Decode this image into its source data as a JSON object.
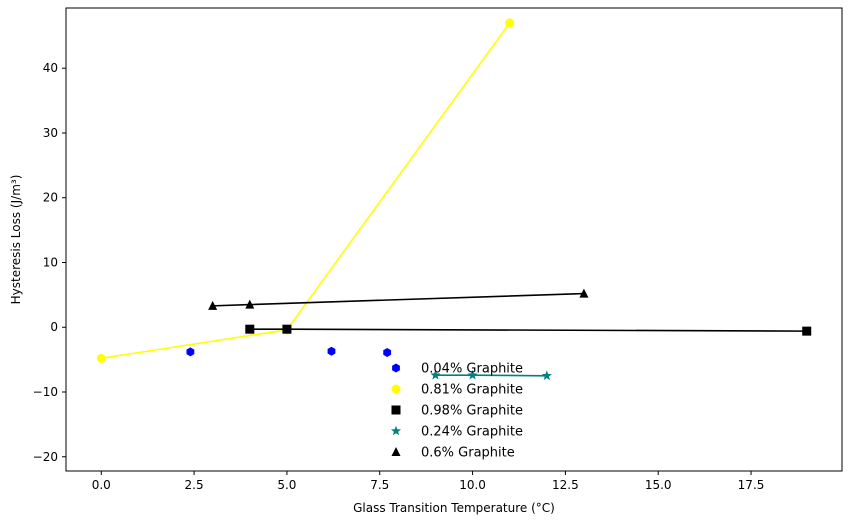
{
  "chart_data": {
    "type": "scatter",
    "title": "",
    "xlabel": "Glass Transition Temperature (°C)",
    "ylabel": "Hysteresis Loss (J/m³)",
    "xlim": [
      -0.95,
      19.95
    ],
    "ylim": [
      -22.2,
      49.3
    ],
    "xticks": [
      0.0,
      2.5,
      5.0,
      7.5,
      10.0,
      12.5,
      15.0,
      17.5
    ],
    "xtick_labels": [
      "0.0",
      "2.5",
      "5.0",
      "7.5",
      "10.0",
      "12.5",
      "15.0",
      "17.5"
    ],
    "yticks": [
      -20,
      -10,
      0,
      10,
      20,
      30,
      40
    ],
    "ytick_labels": [
      "−20",
      "−10",
      "0",
      "10",
      "20",
      "30",
      "40"
    ],
    "grid": false,
    "legend_position": "lower-center",
    "series": [
      {
        "name": "0.04% Graphite",
        "color": "#0000ff",
        "marker": "hexagon",
        "line": false,
        "x": [
          2.4,
          6.2,
          7.7
        ],
        "y": [
          -3.8,
          -3.7,
          -3.9
        ]
      },
      {
        "name": "0.81% Graphite",
        "color": "#ffff00",
        "marker": "circle",
        "line": true,
        "x": [
          0.0,
          5.0,
          11.0
        ],
        "y": [
          -4.8,
          -0.4,
          47.0
        ]
      },
      {
        "name": "0.98% Graphite",
        "color": "#000000",
        "marker": "square",
        "line": true,
        "x": [
          4.0,
          5.0,
          19.0
        ],
        "y": [
          -0.3,
          -0.3,
          -0.6
        ]
      },
      {
        "name": "0.24% Graphite",
        "color": "#008080",
        "marker": "star",
        "line": true,
        "x": [
          9.0,
          10.0,
          12.0
        ],
        "y": [
          -7.4,
          -7.4,
          -7.5
        ]
      },
      {
        "name": "0.6% Graphite",
        "color": "#000000",
        "marker": "triangle",
        "line": true,
        "x": [
          3.0,
          4.0,
          13.0
        ],
        "y": [
          3.3,
          3.5,
          5.2
        ]
      }
    ]
  }
}
